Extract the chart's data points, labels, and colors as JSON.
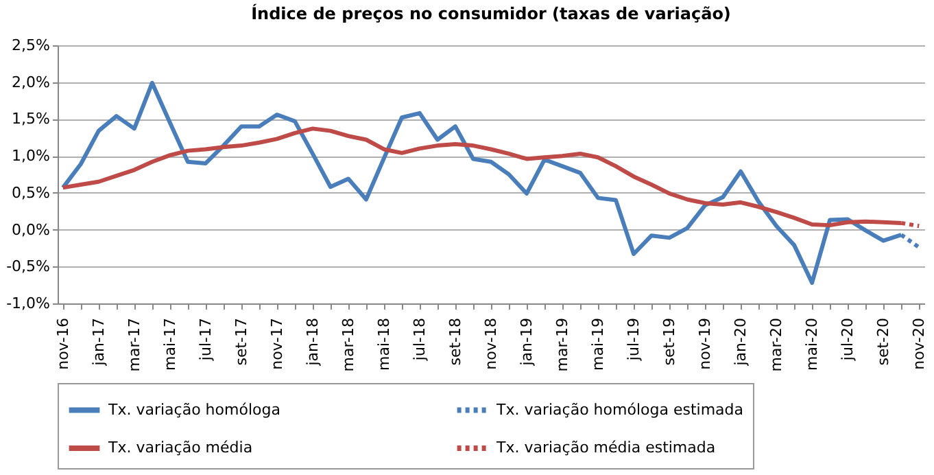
{
  "chart_data": {
    "type": "line",
    "title": "Índice de preços no consumidor  (taxas  de variação)",
    "categories": [
      "nov-16",
      null,
      "jan-17",
      null,
      "mar-17",
      null,
      "mai-17",
      null,
      "jul-17",
      null,
      "set-17",
      null,
      "nov-17",
      null,
      "jan-18",
      null,
      "mar-18",
      null,
      "mai-18",
      null,
      "jul-18",
      null,
      "set-18",
      null,
      "nov-18",
      null,
      "jan-19",
      null,
      "mar-19",
      null,
      "mai-19",
      null,
      "jul-19",
      null,
      "set-19",
      null,
      "nov-19",
      null,
      "jan-20",
      null,
      "mar-20",
      null,
      "mai-20",
      null,
      "jul-20",
      null,
      "set-20",
      null,
      "nov-20"
    ],
    "series": [
      {
        "name": "Tx. variação homóloga",
        "color": "#4a7ebb",
        "line_style": "solid",
        "values": [
          0.57,
          0.89,
          1.34,
          1.54,
          1.37,
          1.99,
          1.45,
          0.92,
          0.9,
          1.14,
          1.4,
          1.4,
          1.56,
          1.47,
          1.03,
          0.58,
          0.69,
          0.41,
          0.97,
          1.52,
          1.58,
          1.22,
          1.4,
          0.96,
          0.92,
          0.75,
          0.49,
          0.95,
          0.86,
          0.77,
          0.43,
          0.4,
          -0.33,
          -0.08,
          -0.11,
          0.02,
          0.33,
          0.44,
          0.79,
          0.38,
          0.05,
          -0.21,
          -0.72,
          0.13,
          0.14,
          -0.01,
          -0.15,
          -0.07,
          null
        ]
      },
      {
        "name": "Tx. variação média",
        "color": "#be4b48",
        "line_style": "solid",
        "values": [
          0.57,
          0.61,
          0.65,
          0.73,
          0.81,
          0.92,
          1.01,
          1.07,
          1.09,
          1.12,
          1.14,
          1.18,
          1.23,
          1.31,
          1.37,
          1.34,
          1.27,
          1.22,
          1.09,
          1.04,
          1.1,
          1.14,
          1.16,
          1.14,
          1.09,
          1.03,
          0.96,
          0.98,
          1.0,
          1.03,
          0.98,
          0.86,
          0.72,
          0.61,
          0.49,
          0.41,
          0.36,
          0.34,
          0.37,
          0.31,
          0.24,
          0.16,
          0.07,
          0.06,
          0.1,
          0.11,
          0.1,
          0.09,
          null
        ]
      },
      {
        "name": "Tx. variação homóloga estimada",
        "color": "#4a7ebb",
        "line_style": "dotted",
        "values": [
          null,
          null,
          null,
          null,
          null,
          null,
          null,
          null,
          null,
          null,
          null,
          null,
          null,
          null,
          null,
          null,
          null,
          null,
          null,
          null,
          null,
          null,
          null,
          null,
          null,
          null,
          null,
          null,
          null,
          null,
          null,
          null,
          null,
          null,
          null,
          null,
          null,
          null,
          null,
          null,
          null,
          null,
          null,
          null,
          null,
          null,
          null,
          -0.07,
          -0.24
        ]
      },
      {
        "name": "Tx. variação média  estimada",
        "color": "#be4b48",
        "line_style": "dotted",
        "values": [
          null,
          null,
          null,
          null,
          null,
          null,
          null,
          null,
          null,
          null,
          null,
          null,
          null,
          null,
          null,
          null,
          null,
          null,
          null,
          null,
          null,
          null,
          null,
          null,
          null,
          null,
          null,
          null,
          null,
          null,
          null,
          null,
          null,
          null,
          null,
          null,
          null,
          null,
          null,
          null,
          null,
          null,
          null,
          null,
          null,
          null,
          null,
          0.09,
          0.05
        ]
      }
    ],
    "ylim": [
      -1.0,
      2.5
    ],
    "yticks": [
      {
        "value": -1.0,
        "label": "-1,0%"
      },
      {
        "value": -0.5,
        "label": "-0,5%"
      },
      {
        "value": 0,
        "label": "0,0%"
      },
      {
        "value": 0.5,
        "label": "0,5%"
      },
      {
        "value": 1.0,
        "label": "1,0%"
      },
      {
        "value": 1.5,
        "label": "1,5%"
      },
      {
        "value": 2.0,
        "label": "2,0%"
      },
      {
        "value": 2.5,
        "label": "2,5%"
      }
    ],
    "grid": "y",
    "legend": "bottom",
    "marker": "none"
  }
}
